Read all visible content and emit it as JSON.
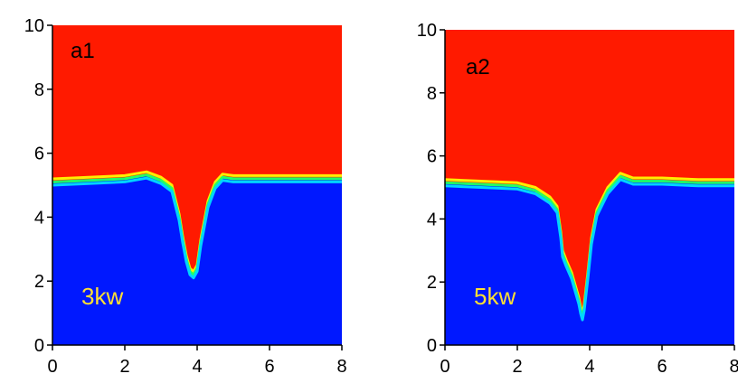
{
  "colors": {
    "upper": "#ff1a00",
    "lower": "#0018ff",
    "interface": [
      "#ffee00",
      "#22ff66",
      "#00d4ff"
    ],
    "power_label": "#ffe033",
    "axis": "#000000"
  },
  "chart_data": [
    {
      "type": "heatmap",
      "panel_label": "a1",
      "power_label": "3kw",
      "xlim": [
        0,
        8
      ],
      "ylim": [
        0,
        10
      ],
      "xticks": [
        "0",
        "2",
        "4",
        "6",
        "8"
      ],
      "yticks": [
        "0",
        "2",
        "4",
        "6",
        "8",
        "10"
      ],
      "boundary": {
        "x": [
          0,
          1.0,
          2.0,
          2.6,
          3.0,
          3.3,
          3.5,
          3.6,
          3.7,
          3.8,
          3.9,
          4.0,
          4.1,
          4.3,
          4.5,
          4.7,
          5.0,
          6.0,
          7.0,
          8.0
        ],
        "y": [
          5.1,
          5.15,
          5.2,
          5.32,
          5.15,
          4.9,
          4.0,
          3.3,
          2.7,
          2.3,
          2.2,
          2.4,
          3.2,
          4.4,
          5.0,
          5.25,
          5.2,
          5.2,
          5.2,
          5.2
        ]
      }
    },
    {
      "type": "heatmap",
      "panel_label": "a2",
      "power_label": "5kw",
      "xlim": [
        0,
        8
      ],
      "ylim": [
        0,
        10
      ],
      "xticks": [
        "0",
        "2",
        "4",
        "6",
        "8"
      ],
      "yticks": [
        "0",
        "2",
        "4",
        "6",
        "8",
        "10"
      ],
      "boundary": {
        "x": [
          0,
          1.0,
          2.0,
          2.5,
          2.9,
          3.1,
          3.2,
          3.25,
          3.35,
          3.5,
          3.6,
          3.7,
          3.75,
          3.8,
          3.85,
          3.95,
          4.05,
          4.2,
          4.5,
          4.85,
          5.2,
          6.0,
          7.0,
          8.0
        ],
        "y": [
          5.15,
          5.1,
          5.05,
          4.9,
          4.6,
          4.3,
          3.5,
          2.9,
          2.6,
          2.2,
          1.8,
          1.4,
          1.1,
          0.9,
          1.2,
          2.2,
          3.3,
          4.2,
          4.9,
          5.35,
          5.2,
          5.2,
          5.15,
          5.15
        ]
      }
    }
  ]
}
